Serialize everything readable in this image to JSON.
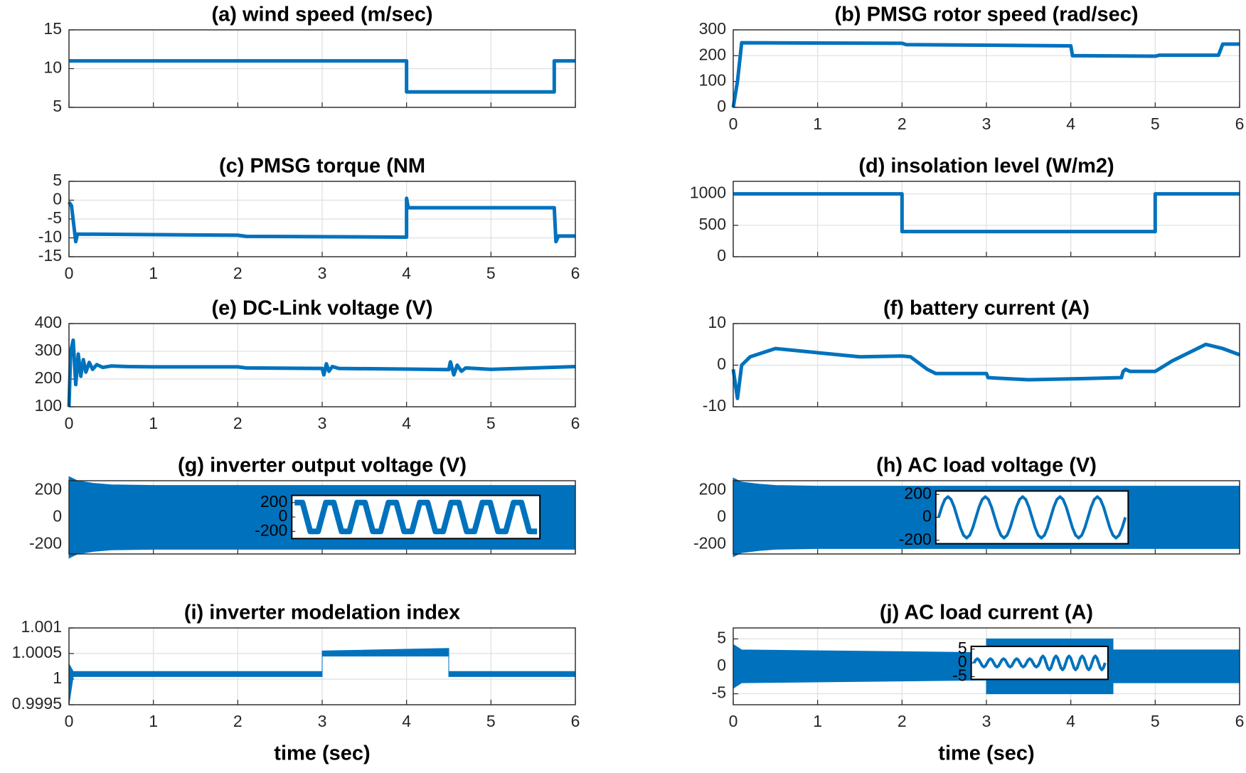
{
  "chart_data": [
    {
      "type": "line",
      "title": "(a) wind speed (m/sec)",
      "color": "#0072bd",
      "grid": true,
      "show_xtick_labels": false,
      "x": [
        0,
        4,
        4,
        5.75,
        5.75,
        6
      ],
      "values": [
        11,
        11,
        7,
        7,
        11,
        11
      ],
      "xlim": [
        0,
        6
      ],
      "xticks": [
        0,
        1,
        2,
        3,
        4,
        5,
        6
      ],
      "ylim": [
        5,
        15
      ],
      "yticks": [
        5,
        10,
        15
      ]
    },
    {
      "type": "line",
      "title": "(b) PMSG rotor speed (rad/sec)",
      "color": "#0072bd",
      "grid": true,
      "show_xtick_labels": true,
      "x": [
        0,
        0.05,
        0.1,
        2,
        2.05,
        4,
        4.02,
        5,
        5.05,
        5.75,
        5.8,
        6
      ],
      "values": [
        0,
        100,
        250,
        248,
        243,
        238,
        200,
        198,
        202,
        202,
        245,
        245
      ],
      "xlim": [
        0,
        6
      ],
      "xticks": [
        0,
        1,
        2,
        3,
        4,
        5,
        6
      ],
      "ylim": [
        0,
        300
      ],
      "yticks": [
        0,
        100,
        200,
        300
      ]
    },
    {
      "type": "line",
      "title": "(c) PMSG torque (NM",
      "color": "#0072bd",
      "grid": true,
      "show_xtick_labels": true,
      "x": [
        0,
        0.03,
        0.08,
        0.1,
        0.12,
        2,
        2.1,
        4,
        4,
        4.02,
        5,
        5.75,
        5.77,
        5.8,
        6
      ],
      "values": [
        -0.5,
        -1.5,
        -11,
        -9,
        -9,
        -9.3,
        -9.6,
        -9.8,
        0.5,
        -2,
        -2,
        -2,
        -11,
        -9.5,
        -9.5
      ],
      "xlim": [
        0,
        6
      ],
      "xticks": [
        0,
        1,
        2,
        3,
        4,
        5,
        6
      ],
      "ylim": [
        -15,
        5
      ],
      "yticks": [
        -15,
        -10,
        -5,
        0,
        5
      ]
    },
    {
      "type": "line",
      "title": "(d) insolation level (W/m2)",
      "color": "#0072bd",
      "grid": true,
      "show_xtick_labels": false,
      "x": [
        0,
        2,
        2,
        5,
        5,
        6
      ],
      "values": [
        1000,
        1000,
        400,
        400,
        1000,
        1000
      ],
      "xlim": [
        0,
        6
      ],
      "xticks": [
        0,
        1,
        2,
        3,
        4,
        5,
        6
      ],
      "ylim": [
        0,
        1200
      ],
      "yticks": [
        0,
        500,
        1000
      ]
    },
    {
      "type": "line",
      "title": "(e) DC-Link voltage (V)",
      "color": "#0072bd",
      "grid": true,
      "show_xtick_labels": true,
      "x": [
        0,
        0.02,
        0.05,
        0.08,
        0.11,
        0.14,
        0.17,
        0.2,
        0.24,
        0.28,
        0.33,
        0.4,
        0.5,
        0.7,
        1,
        2,
        2.1,
        3,
        3.02,
        3.05,
        3.08,
        3.12,
        3.2,
        4,
        4.5,
        4.52,
        4.56,
        4.6,
        4.65,
        4.7,
        5,
        6
      ],
      "values": [
        100,
        300,
        340,
        180,
        290,
        210,
        270,
        225,
        260,
        235,
        252,
        242,
        247,
        245,
        244,
        244,
        240,
        238,
        215,
        255,
        228,
        245,
        238,
        236,
        234,
        262,
        215,
        250,
        228,
        240,
        235,
        245
      ],
      "xlim": [
        0,
        6
      ],
      "xticks": [
        0,
        1,
        2,
        3,
        4,
        5,
        6
      ],
      "ylim": [
        100,
        400
      ],
      "yticks": [
        100,
        200,
        300,
        400
      ]
    },
    {
      "type": "line",
      "title": "(f) battery current (A)",
      "color": "#0072bd",
      "grid": true,
      "show_xtick_labels": false,
      "x": [
        0,
        0.05,
        0.1,
        0.2,
        0.5,
        1,
        1.5,
        2,
        2.1,
        2.3,
        2.4,
        3,
        3.02,
        3.5,
        4,
        4.6,
        4.62,
        4.65,
        4.7,
        5,
        5.2,
        5.6,
        5.8,
        6
      ],
      "values": [
        -1,
        -8,
        0,
        2,
        4,
        3,
        2,
        2.2,
        2,
        -1,
        -2,
        -2,
        -3,
        -3.5,
        -3.3,
        -3,
        -1.5,
        -1,
        -1.5,
        -1.5,
        1,
        5,
        4,
        2.5
      ],
      "xlim": [
        0,
        6
      ],
      "xticks": [
        0,
        1,
        2,
        3,
        4,
        5,
        6
      ],
      "ylim": [
        -10,
        10
      ],
      "yticks": [
        -10,
        0,
        10
      ]
    },
    {
      "type": "band",
      "title": "(g) inverter output voltage (V)",
      "color": "#0072bd",
      "grid": true,
      "show_xtick_labels": false,
      "x": [
        0,
        0.1,
        0.3,
        0.5,
        1,
        6
      ],
      "upper": [
        300,
        270,
        250,
        240,
        235,
        235
      ],
      "lower": [
        -300,
        -270,
        -250,
        -240,
        -235,
        -235
      ],
      "xlim": [
        0,
        6
      ],
      "xticks": [
        0,
        1,
        2,
        3,
        4,
        5,
        6
      ],
      "ylim": [
        -270,
        270
      ],
      "yticks": [
        -200,
        0,
        200
      ],
      "inset": {
        "type": "line",
        "ylim": [
          -300,
          300
        ],
        "yticks": [
          -200,
          0,
          200
        ],
        "values": [
          200,
          200,
          -200,
          -200,
          200,
          200,
          -200,
          -200,
          200,
          200,
          -200,
          -200,
          200,
          200,
          -200,
          -200,
          200,
          200,
          -200,
          -200,
          200,
          200,
          -200,
          -200,
          200,
          200,
          -200,
          -200,
          200,
          200,
          -200,
          -200
        ]
      }
    },
    {
      "type": "band",
      "title": "(h) AC load voltage (V)",
      "color": "#0072bd",
      "grid": true,
      "show_xtick_labels": false,
      "x": [
        0,
        0.1,
        0.3,
        0.5,
        1,
        6
      ],
      "upper": [
        290,
        260,
        245,
        235,
        230,
        230
      ],
      "lower": [
        -290,
        -260,
        -245,
        -235,
        -230,
        -230
      ],
      "xlim": [
        0,
        6
      ],
      "xticks": [
        0,
        1,
        2,
        3,
        4,
        5,
        6
      ],
      "ylim": [
        -270,
        270
      ],
      "yticks": [
        -200,
        0,
        200
      ],
      "inset": {
        "type": "line",
        "ylim": [
          -230,
          230
        ],
        "yticks": [
          -200,
          0,
          200
        ],
        "values": [
          0,
          90,
          156,
          180,
          156,
          90,
          0,
          -90,
          -156,
          -180,
          -156,
          -90,
          0,
          90,
          156,
          180,
          156,
          90,
          0,
          -90,
          -156,
          -180,
          -156,
          -90,
          0,
          90,
          156,
          180,
          156,
          90,
          0,
          -90,
          -156,
          -180,
          -156,
          -90,
          0,
          90,
          156,
          180,
          156,
          90,
          0,
          -90,
          -156,
          -180,
          -156,
          -90,
          0,
          90,
          156,
          180,
          156,
          90,
          0,
          -90,
          -156,
          -180,
          -156,
          -90,
          0
        ]
      }
    },
    {
      "type": "band",
      "title": "(i) inverter modelation index",
      "color": "#0072bd",
      "grid": true,
      "show_xtick_labels": true,
      "xlabel": "time (sec)",
      "x": [
        0,
        0.05,
        3,
        3,
        4.5,
        4.5,
        6
      ],
      "upper": [
        1.0003,
        1.00015,
        1.00015,
        1.00055,
        1.0006,
        1.00015,
        1.00015
      ],
      "lower": [
        0.9995,
        1.00005,
        1.00005,
        1.00045,
        1.00045,
        1.00005,
        1.00005
      ],
      "xlim": [
        0,
        6
      ],
      "xticks": [
        0,
        1,
        2,
        3,
        4,
        5,
        6
      ],
      "ylim": [
        0.9995,
        1.001
      ],
      "yticks": [
        0.9995,
        1,
        1.0005,
        1.001
      ]
    },
    {
      "type": "band",
      "title": "(j) AC load current (A)",
      "color": "#0072bd",
      "grid": true,
      "show_xtick_labels": true,
      "xlabel": "time (sec)",
      "x": [
        0,
        0.1,
        3,
        3,
        4.5,
        4.5,
        6
      ],
      "upper": [
        4,
        3,
        2.5,
        5,
        5,
        3,
        3
      ],
      "lower": [
        -4,
        -3,
        -2.5,
        -5,
        -5,
        -3,
        -3
      ],
      "xlim": [
        0,
        6
      ],
      "xticks": [
        0,
        1,
        2,
        3,
        4,
        5,
        6
      ],
      "ylim": [
        -7,
        7
      ],
      "yticks": [
        -5,
        0,
        5
      ],
      "inset": {
        "type": "line",
        "ylim": [
          -6,
          6
        ],
        "yticks": [
          -5,
          0,
          5
        ],
        "values": [
          0,
          1.06,
          1.5,
          1.06,
          0,
          -1.06,
          -1.5,
          -1.06,
          0,
          1.06,
          1.5,
          1.06,
          0,
          -1.06,
          -1.5,
          -1.06,
          0,
          1.06,
          1.5,
          1.06,
          0,
          -1.06,
          -1.5,
          -1.06,
          0,
          1.06,
          1.5,
          1.06,
          0,
          -1.06,
          -1.5,
          -1.06,
          0,
          1.06,
          1.5,
          1.06,
          0,
          -1.06,
          -1.5,
          -1.06,
          0,
          1.77,
          2.5,
          1.77,
          0,
          -1.77,
          -2.5,
          -1.77,
          0,
          1.77,
          2.5,
          1.77,
          0,
          -1.77,
          -2.5,
          -1.77,
          0,
          1.77,
          2.5,
          1.77,
          0,
          -1.77,
          -2.5,
          -1.77,
          0,
          1.77,
          2.5,
          1.77,
          0,
          -1.77,
          -2.5,
          -1.77,
          0,
          1.77,
          2.5,
          1.77,
          0,
          -1.77,
          -2.5,
          -1.77,
          0
        ]
      }
    }
  ]
}
